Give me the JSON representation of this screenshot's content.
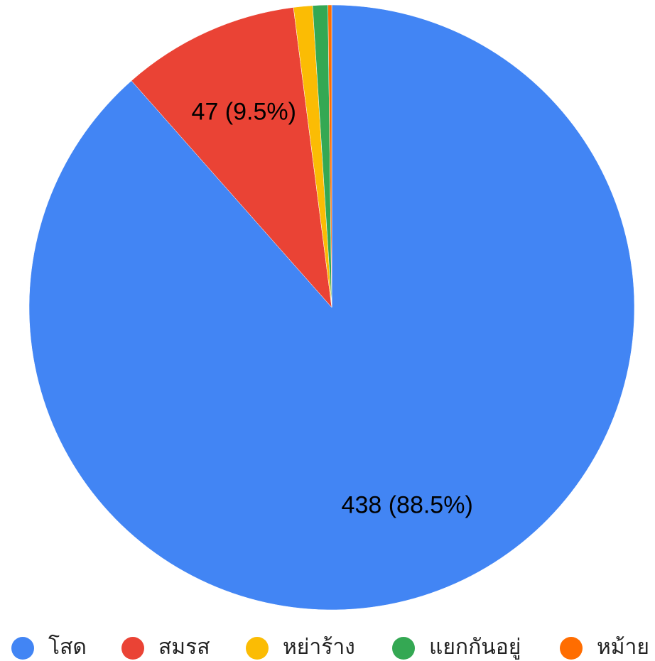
{
  "chart_data": {
    "type": "pie",
    "categories": [
      "โสด",
      "สมรส",
      "หย่าร้าง",
      "แยกกันอยู่",
      "หม้าย"
    ],
    "values": [
      438,
      47,
      5,
      4,
      1
    ],
    "value_labels": [
      "438 (88.5%)",
      "47 (9.5%)",
      null,
      null,
      null
    ],
    "colors": [
      "#4285f4",
      "#ea4335",
      "#fbbc04",
      "#34a853",
      "#ff6d01"
    ],
    "legend": "bottom"
  }
}
